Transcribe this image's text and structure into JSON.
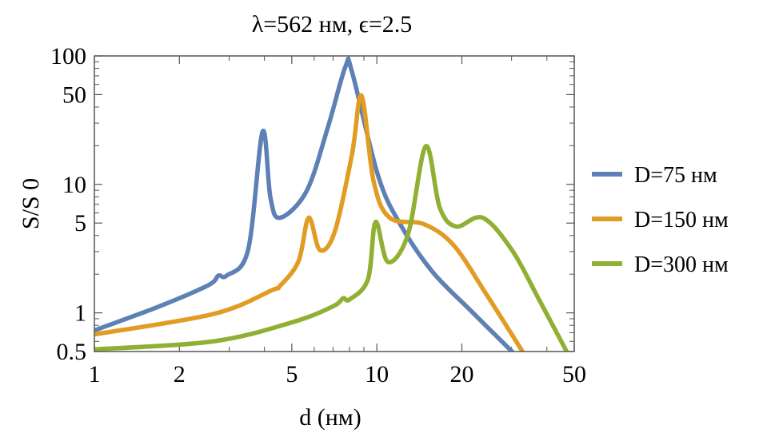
{
  "chart_data": {
    "type": "line",
    "title": "λ=562 нм, ϵ=2.5",
    "xlabel": "d (нм)",
    "ylabel": "S/S 0",
    "xscale": "log",
    "yscale": "log",
    "xlim": [
      1,
      50
    ],
    "ylim": [
      0.5,
      100
    ],
    "xticks": [
      1,
      2,
      5,
      10,
      20,
      50
    ],
    "xtick_labels": [
      "1",
      "2",
      "5",
      "10",
      "20",
      "50"
    ],
    "yticks": [
      0.5,
      1,
      5,
      10,
      50,
      100
    ],
    "ytick_labels": [
      "0.5",
      "1",
      "5",
      "10",
      "50",
      "100"
    ],
    "grid": false,
    "legend_position": "right",
    "series": [
      {
        "name": "D=75 нм",
        "color": "#5E81B5",
        "x": [
          1,
          1.71,
          2.53,
          2.75,
          2.94,
          3.5,
          3.94,
          4.2,
          4.54,
          5.63,
          6.7,
          7.75,
          8.17,
          10.1,
          12.1,
          15.7,
          21.7,
          30.1
        ],
        "y": [
          0.73,
          1.13,
          1.64,
          1.95,
          1.95,
          3.08,
          25.7,
          7.9,
          5.5,
          8.8,
          27.5,
          83,
          75,
          11.7,
          4.9,
          2.1,
          1.02,
          0.5
        ]
      },
      {
        "name": "D=150 нм",
        "color": "#E19C24",
        "x": [
          1,
          2.64,
          4.25,
          4.54,
          5.28,
          5.74,
          6.29,
          7.1,
          8.17,
          8.83,
          9.74,
          11.1,
          14.7,
          18.7,
          24.3,
          32.8
        ],
        "y": [
          0.68,
          0.98,
          1.5,
          1.62,
          2.52,
          5.5,
          3.08,
          4.3,
          17.2,
          49,
          10.6,
          5.5,
          4.9,
          3.36,
          1.42,
          0.5
        ]
      },
      {
        "name": "D=300 нм",
        "color": "#8FB032",
        "x": [
          1,
          2.64,
          5.07,
          7.03,
          7.6,
          8.0,
          9.3,
          9.9,
          10.95,
          12.9,
          14.9,
          16.7,
          19.1,
          23.7,
          30.1,
          37.3,
          47
        ],
        "y": [
          0.52,
          0.6,
          0.85,
          1.13,
          1.3,
          1.27,
          1.82,
          5.1,
          2.49,
          4.1,
          19.8,
          6.6,
          4.7,
          5.5,
          3.08,
          1.3,
          0.5
        ]
      }
    ]
  }
}
